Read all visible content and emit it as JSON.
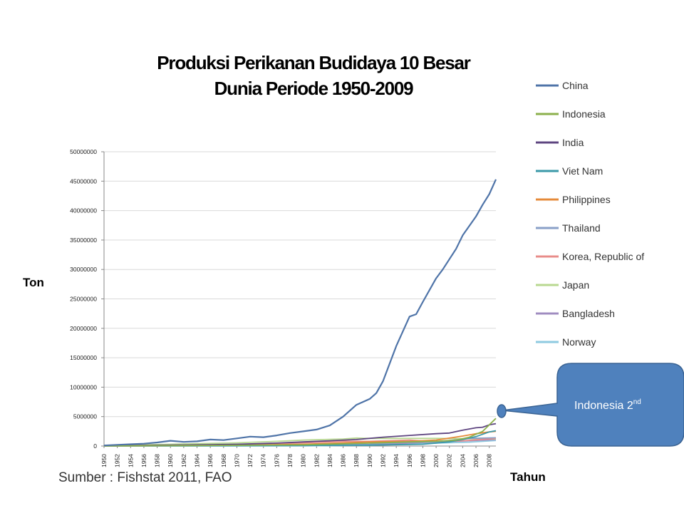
{
  "slide": {
    "title_line1": "Produksi Perikanan Budidaya 10  Besar",
    "title_line2": "Dunia Periode 1950-2009",
    "ylabel": "Ton",
    "xlabel": "Tahun",
    "source": "Sumber : Fishstat 2011, FAO",
    "callout": {
      "text": "Indonesia 2",
      "superscript": "nd",
      "fill": "#4f81bd",
      "stroke": "#3a6393"
    }
  },
  "chart_data": {
    "type": "line",
    "title": "Produksi Perikanan Budidaya 10  Besar Dunia Periode 1950-2009",
    "xlabel": "Tahun",
    "ylabel": "Ton",
    "x_range": [
      1950,
      2009
    ],
    "ylim": [
      0,
      50000000
    ],
    "y_ticks": [
      "0",
      "5000000",
      "10000000",
      "15000000",
      "20000000",
      "25000000",
      "30000000",
      "35000000",
      "40000000",
      "45000000",
      "50000000"
    ],
    "x_ticks": [
      "1950",
      "1952",
      "1954",
      "1956",
      "1958",
      "1960",
      "1962",
      "1964",
      "1966",
      "1968",
      "1970",
      "1972",
      "1974",
      "1976",
      "1978",
      "1980",
      "1982",
      "1984",
      "1986",
      "1988",
      "1990",
      "1992",
      "1994",
      "1996",
      "1998",
      "2000",
      "2002",
      "2004",
      "2006",
      "2008"
    ],
    "grid": true,
    "legend_position": "right",
    "series": [
      {
        "name": "China",
        "color": "#4f74a8",
        "points": [
          [
            1950,
            100000
          ],
          [
            1952,
            200000
          ],
          [
            1954,
            300000
          ],
          [
            1956,
            400000
          ],
          [
            1958,
            600000
          ],
          [
            1960,
            900000
          ],
          [
            1962,
            700000
          ],
          [
            1964,
            800000
          ],
          [
            1966,
            1100000
          ],
          [
            1968,
            1000000
          ],
          [
            1970,
            1300000
          ],
          [
            1972,
            1600000
          ],
          [
            1974,
            1500000
          ],
          [
            1976,
            1800000
          ],
          [
            1978,
            2200000
          ],
          [
            1980,
            2500000
          ],
          [
            1982,
            2800000
          ],
          [
            1984,
            3500000
          ],
          [
            1986,
            5000000
          ],
          [
            1988,
            7000000
          ],
          [
            1990,
            8000000
          ],
          [
            1991,
            9000000
          ],
          [
            1992,
            11000000
          ],
          [
            1994,
            17000000
          ],
          [
            1996,
            22000000
          ],
          [
            1997,
            22400000
          ],
          [
            1998,
            24500000
          ],
          [
            2000,
            28500000
          ],
          [
            2001,
            30000000
          ],
          [
            2003,
            33500000
          ],
          [
            2004,
            35800000
          ],
          [
            2006,
            39000000
          ],
          [
            2007,
            41000000
          ],
          [
            2008,
            42800000
          ],
          [
            2009,
            45300000
          ]
        ]
      },
      {
        "name": "Indonesia",
        "color": "#8cb04c",
        "points": [
          [
            1950,
            30000
          ],
          [
            1960,
            60000
          ],
          [
            1970,
            120000
          ],
          [
            1980,
            200000
          ],
          [
            1990,
            500000
          ],
          [
            1996,
            700000
          ],
          [
            2000,
            800000
          ],
          [
            2003,
            1000000
          ],
          [
            2005,
            1500000
          ],
          [
            2007,
            2500000
          ],
          [
            2009,
            4700000
          ]
        ]
      },
      {
        "name": "India",
        "color": "#5e4580",
        "points": [
          [
            1950,
            50000
          ],
          [
            1960,
            150000
          ],
          [
            1970,
            300000
          ],
          [
            1976,
            500000
          ],
          [
            1980,
            700000
          ],
          [
            1984,
            900000
          ],
          [
            1988,
            1100000
          ],
          [
            1992,
            1500000
          ],
          [
            1996,
            1800000
          ],
          [
            2000,
            2100000
          ],
          [
            2002,
            2200000
          ],
          [
            2004,
            2700000
          ],
          [
            2006,
            3100000
          ],
          [
            2007,
            3200000
          ],
          [
            2008,
            3600000
          ],
          [
            2009,
            3800000
          ]
        ]
      },
      {
        "name": "Viet Nam",
        "color": "#3a98a8",
        "points": [
          [
            1950,
            10000
          ],
          [
            1970,
            50000
          ],
          [
            1980,
            100000
          ],
          [
            1990,
            150000
          ],
          [
            1998,
            300000
          ],
          [
            2002,
            700000
          ],
          [
            2004,
            1100000
          ],
          [
            2006,
            1600000
          ],
          [
            2008,
            2400000
          ],
          [
            2009,
            2600000
          ]
        ]
      },
      {
        "name": "Philippines",
        "color": "#e58a3a",
        "points": [
          [
            1950,
            20000
          ],
          [
            1960,
            60000
          ],
          [
            1970,
            100000
          ],
          [
            1980,
            300000
          ],
          [
            1990,
            700000
          ],
          [
            1996,
            800000
          ],
          [
            2000,
            1000000
          ],
          [
            2004,
            1700000
          ],
          [
            2006,
            2100000
          ],
          [
            2008,
            2400000
          ],
          [
            2009,
            2500000
          ]
        ]
      },
      {
        "name": "Thailand",
        "color": "#8aa0c8",
        "points": [
          [
            1950,
            20000
          ],
          [
            1960,
            50000
          ],
          [
            1970,
            100000
          ],
          [
            1980,
            150000
          ],
          [
            1990,
            300000
          ],
          [
            1995,
            600000
          ],
          [
            2000,
            700000
          ],
          [
            2005,
            1300000
          ],
          [
            2009,
            1400000
          ]
        ]
      },
      {
        "name": "Korea, Republic of",
        "color": "#e88c8a",
        "points": [
          [
            1950,
            10000
          ],
          [
            1960,
            50000
          ],
          [
            1970,
            200000
          ],
          [
            1976,
            400000
          ],
          [
            1980,
            550000
          ],
          [
            1986,
            800000
          ],
          [
            1990,
            800000
          ],
          [
            1996,
            1000000
          ],
          [
            2000,
            700000
          ],
          [
            2004,
            900000
          ],
          [
            2009,
            1300000
          ]
        ]
      },
      {
        "name": "Japan",
        "color": "#b8d890",
        "points": [
          [
            1950,
            100000
          ],
          [
            1960,
            300000
          ],
          [
            1970,
            550000
          ],
          [
            1976,
            800000
          ],
          [
            1980,
            1000000
          ],
          [
            1986,
            1200000
          ],
          [
            1988,
            1350000
          ],
          [
            1990,
            1300000
          ],
          [
            1996,
            1300000
          ],
          [
            2000,
            1300000
          ],
          [
            2005,
            1250000
          ],
          [
            2009,
            1200000
          ]
        ]
      },
      {
        "name": "Bangladesh",
        "color": "#a08cc0",
        "points": [
          [
            1950,
            30000
          ],
          [
            1960,
            50000
          ],
          [
            1970,
            80000
          ],
          [
            1980,
            100000
          ],
          [
            1990,
            200000
          ],
          [
            2000,
            700000
          ],
          [
            2005,
            900000
          ],
          [
            2009,
            1100000
          ]
        ]
      },
      {
        "name": "Norway",
        "color": "#8ecae0",
        "points": [
          [
            1950,
            0
          ],
          [
            1970,
            10000
          ],
          [
            1980,
            20000
          ],
          [
            1990,
            150000
          ],
          [
            1996,
            300000
          ],
          [
            2000,
            500000
          ],
          [
            2005,
            650000
          ],
          [
            2009,
            950000
          ]
        ]
      }
    ]
  }
}
